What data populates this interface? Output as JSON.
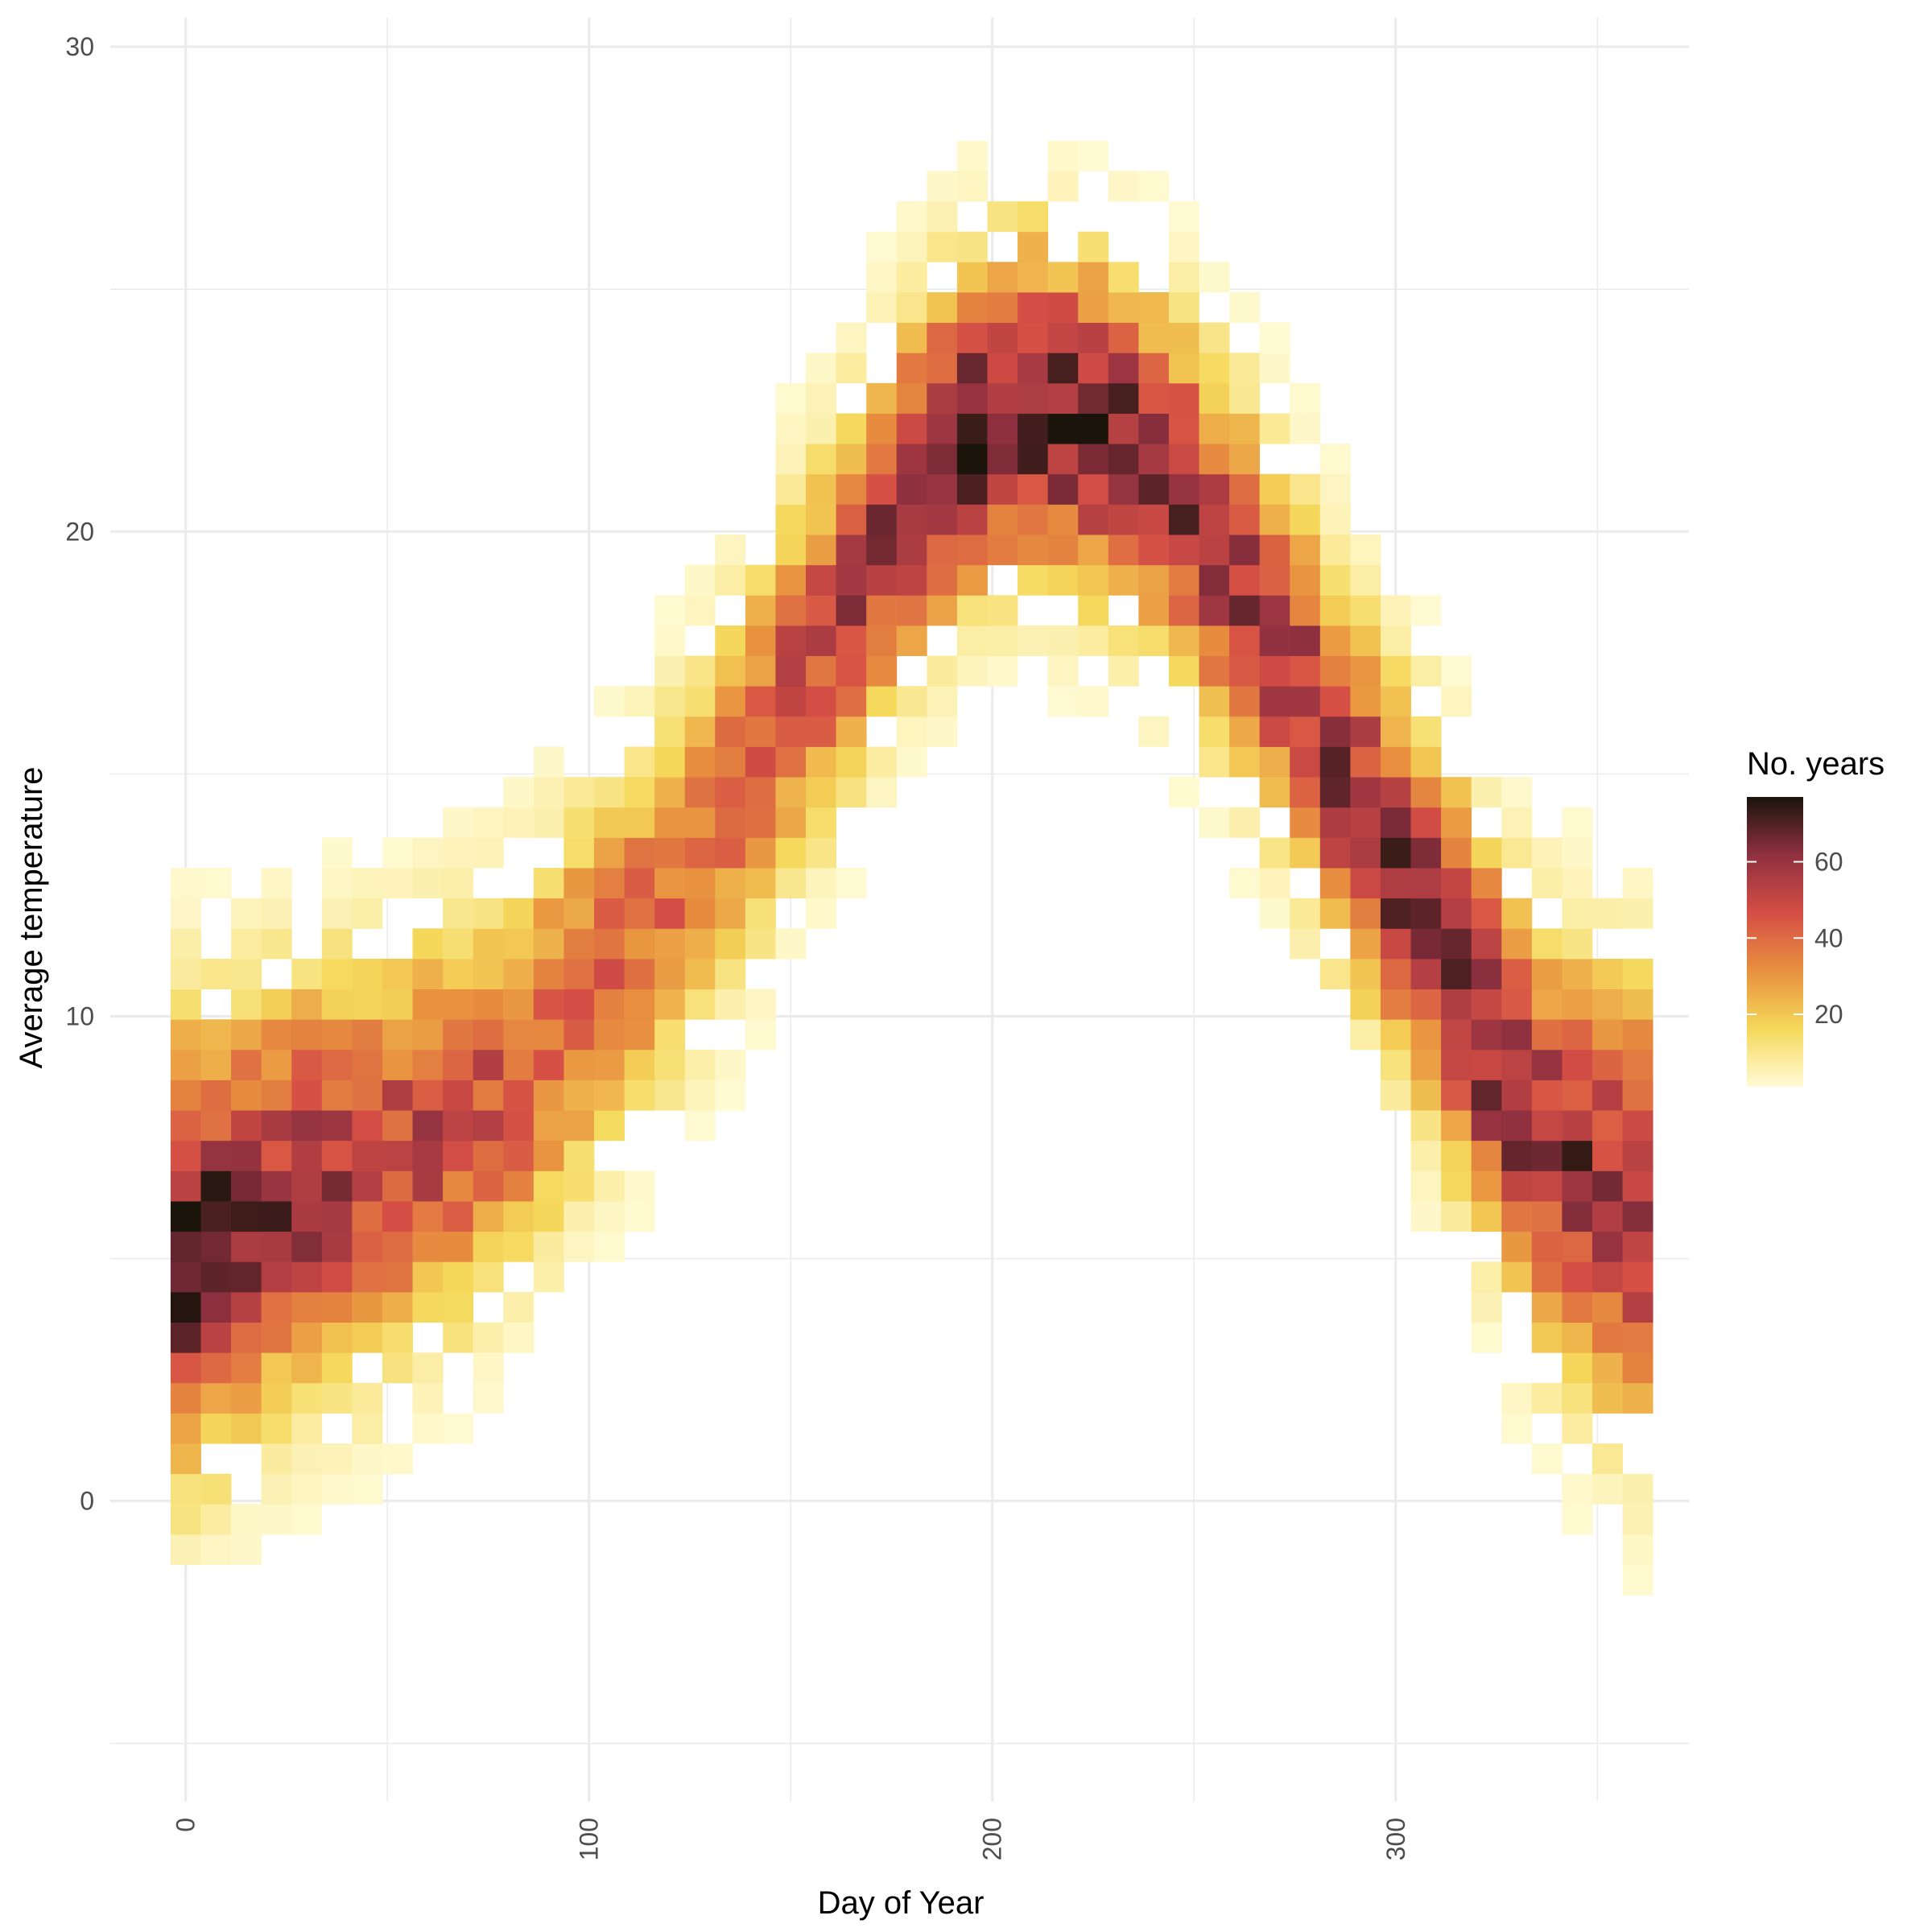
{
  "chart_data": {
    "type": "heatmap",
    "title": "",
    "xlabel": "Day of Year",
    "ylabel": "Average temperature",
    "xlim": [
      -18.7,
      372.7
    ],
    "ylim": [
      -6.2,
      30.6
    ],
    "x_ticks": [
      0,
      100,
      200,
      300
    ],
    "x_tick_labels": [
      "0",
      "100",
      "200",
      "300"
    ],
    "y_ticks": [
      0,
      10,
      20,
      30
    ],
    "y_tick_labels": [
      "0",
      "10",
      "20",
      "30"
    ],
    "bin_width_days": 7.5,
    "bin_height_degrees": 0.625,
    "grid": true,
    "legend": {
      "title": "No. years",
      "position": "right",
      "ticks": [
        20,
        40,
        60
      ],
      "tick_labels": [
        "20",
        "40",
        "60"
      ],
      "range": [
        1,
        77
      ]
    },
    "color_scale": [
      "#fffbd6",
      "#f5d85a",
      "#e8903f",
      "#d54e45",
      "#8f3040",
      "#1a140a"
    ],
    "profile": {
      "x": [
        0,
        10,
        20,
        30,
        40,
        50,
        60,
        70,
        80,
        90,
        100,
        110,
        120,
        130,
        140,
        150,
        160,
        170,
        180,
        190,
        200,
        210,
        220,
        230,
        240,
        250,
        260,
        270,
        280,
        290,
        300,
        310,
        320,
        330,
        340,
        350,
        360
      ],
      "center": [
        5.2,
        5.6,
        6.2,
        6.5,
        6.7,
        7.0,
        7.5,
        8.0,
        8.6,
        9.5,
        10.5,
        11.5,
        12.5,
        13.8,
        15.2,
        16.7,
        18.0,
        19.5,
        20.8,
        21.8,
        22.4,
        22.5,
        22.3,
        22.0,
        21.3,
        20.3,
        19.0,
        17.8,
        16.1,
        14.5,
        13.0,
        11.6,
        10.0,
        8.3,
        7.2,
        6.6,
        6.0
      ],
      "sd": [
        2.8,
        2.7,
        2.6,
        2.6,
        2.6,
        2.5,
        2.5,
        2.5,
        2.4,
        2.4,
        2.3,
        2.3,
        2.3,
        2.3,
        2.3,
        2.3,
        2.3,
        2.2,
        2.2,
        2.2,
        2.1,
        2.1,
        2.1,
        2.1,
        2.2,
        2.2,
        2.3,
        2.3,
        2.3,
        2.3,
        2.4,
        2.4,
        2.4,
        2.5,
        2.6,
        2.7,
        2.8
      ],
      "peak": [
        70,
        65,
        62,
        58,
        55,
        52,
        50,
        48,
        46,
        44,
        42,
        40,
        40,
        42,
        45,
        48,
        50,
        55,
        60,
        65,
        70,
        72,
        70,
        65,
        62,
        60,
        58,
        56,
        58,
        60,
        60,
        62,
        65,
        62,
        60,
        62,
        62
      ]
    }
  }
}
